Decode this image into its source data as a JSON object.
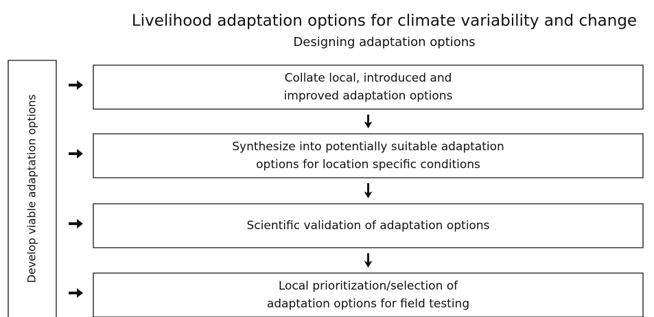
{
  "title": "Livelihood adaptation options for climate variability and change",
  "subtitle": "Designing adaptation options",
  "side_label": "Develop viable adaptation options",
  "steps": [
    {
      "lines": [
        "Collate local, introduced and",
        "improved adaptation options"
      ]
    },
    {
      "lines": [
        "Synthesize into potentially suitable adaptation",
        "options for location specific conditions"
      ]
    },
    {
      "lines": [
        "Scientific validation of adaptation options"
      ]
    },
    {
      "lines": [
        "Local prioritization/selection of",
        "adaptation options for field testing"
      ]
    }
  ]
}
